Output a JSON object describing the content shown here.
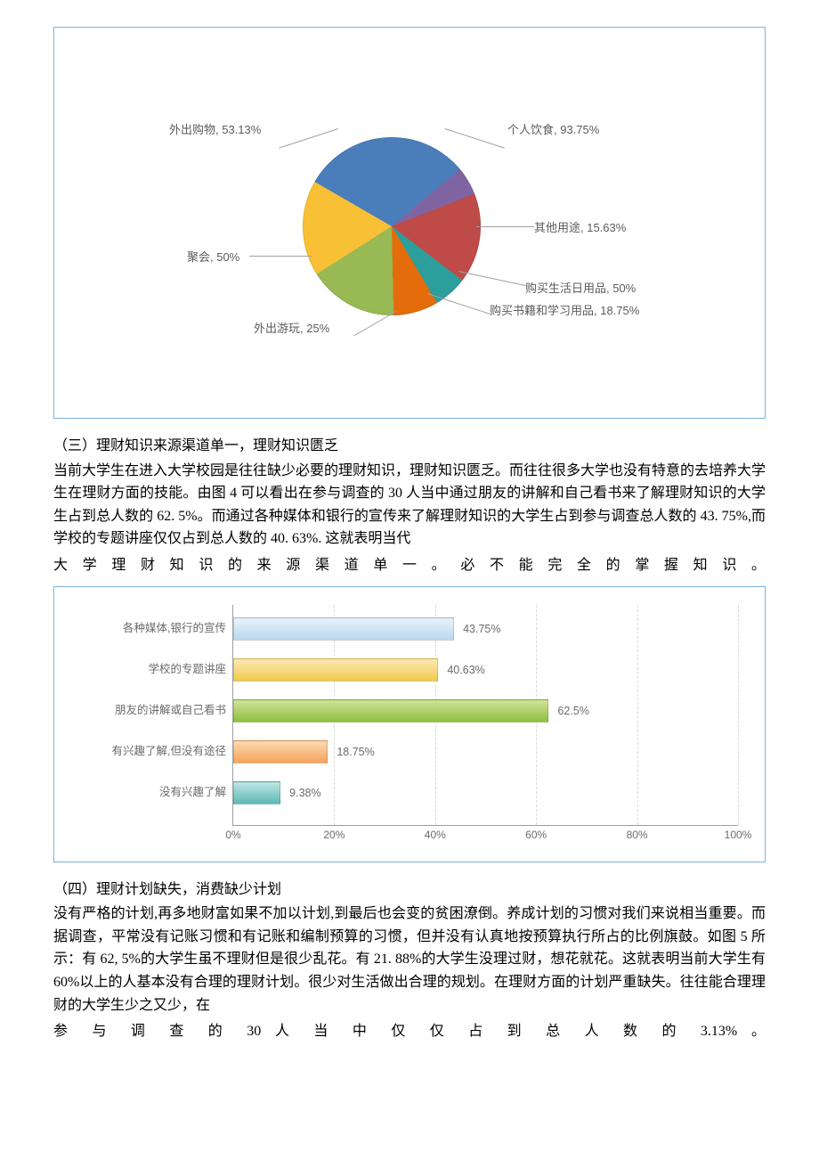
{
  "pie_chart": {
    "type": "pie",
    "background_color": "#ffffff",
    "border_color": "#7db4d8",
    "label_color": "#5b5b5b",
    "label_fontsize": 13,
    "slices": [
      {
        "label": "个人饮食, 93.75%",
        "value": 93.75,
        "color": "#4a7ebb"
      },
      {
        "label": "其他用途, 15.63%",
        "value": 15.63,
        "color": "#8064a2"
      },
      {
        "label": "购买生活日用品, 50%",
        "value": 50.0,
        "color": "#be4b48"
      },
      {
        "label": "购买书籍和学习用品, 18.75%",
        "value": 18.75,
        "color": "#2c9e9b"
      },
      {
        "label": "外出游玩, 25%",
        "value": 25.0,
        "color": "#e46c0a"
      },
      {
        "label": "聚会, 50%",
        "value": 50.0,
        "color": "#98b954"
      },
      {
        "label": "外出购物, 53.13%",
        "value": 53.13,
        "color": "#f8c034"
      }
    ]
  },
  "section3_heading": "（三）理财知识来源渠道单一，理财知识匮乏",
  "section3_body": "当前大学生在进入大学校园是往往缺少必要的理财知识，理财知识匮乏。而往往很多大学也没有特意的去培养大学生在理财方面的技能。由图 4 可以看出在参与调查的 30 人当中通过朋友的讲解和自己看书来了解理财知识的大学生占到总人数的 62. 5%。而通过各种媒体和银行的宣传来了解理财知识的大学生占到参与调查总人数的 43. 75%,而学校的专题讲座仅仅占到总人数的 40. 63%. 这就表明当代",
  "section3_body_last": "大 学 理 财 知 识 的 来 源 渠 道 单 一 。 必 不 能 完 全 的 掌 握 知 识 。",
  "bar_chart": {
    "type": "bar-horizontal",
    "background_color": "#ffffff",
    "border_color": "#7db4d8",
    "axis_color": "#9aa0a6",
    "grid_color": "#d8d8d8",
    "label_color": "#6b6b6b",
    "label_fontsize": 12.5,
    "xlim": [
      0,
      100
    ],
    "xtick_step": 20,
    "xticks": [
      "0%",
      "20%",
      "40%",
      "60%",
      "80%",
      "100%"
    ],
    "bars": [
      {
        "category": "各种媒体,银行的宣传",
        "value": 43.75,
        "label": "43.75%",
        "fill": "linear-gradient(to bottom,#e8f3fb,#b9d8ef)"
      },
      {
        "category": "学校的专题讲座",
        "value": 40.63,
        "label": "40.63%",
        "fill": "linear-gradient(to bottom,#fbe9b7,#f2c94c)"
      },
      {
        "category": "朋友的讲解或自己看书",
        "value": 62.5,
        "label": "62.5%",
        "fill": "linear-gradient(to bottom,#cfe39a,#8fbf3f)"
      },
      {
        "category": "有兴趣了解,但没有途径",
        "value": 18.75,
        "label": "18.75%",
        "fill": "linear-gradient(to bottom,#ffd9b3,#f5a35a)"
      },
      {
        "category": "没有兴趣了解",
        "value": 9.38,
        "label": "9.38%",
        "fill": "linear-gradient(to bottom,#bfe6e4,#5fb8b3)"
      }
    ]
  },
  "section4_heading": "（四）理财计划缺失，消费缺少计划",
  "section4_body": "没有严格的计划,再多地财富如果不加以计划,到最后也会变的贫困潦倒。养成计划的习惯对我们来说相当重要。而据调查，平常没有记账习惯和有记账和编制预算的习惯，但并没有认真地按预算执行所占的比例旗鼓。如图 5 所示：有 62, 5%的大学生虽不理财但是很少乱花。有 21. 88%的大学生没理过财，想花就花。这就表明当前大学生有 60%以上的人基本没有合理的理财计划。很少对生活做出合理的规划。在理财方面的计划严重缺失。往往能合理理财的大学生少之又少，在",
  "section4_body_last": "参 与 调 查 的 30 人 当 中 仅 仅 占 到 总 人 数 的 3.13% 。"
}
